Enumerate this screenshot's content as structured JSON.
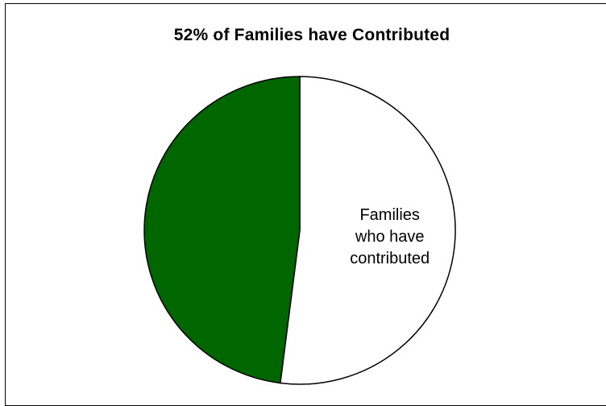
{
  "chart_data": {
    "type": "pie",
    "title": "52% of  Families have Contributed",
    "slices": [
      {
        "label": "Families who have contributed",
        "label_lines": [
          "Families",
          "who have",
          "contributed"
        ],
        "value": 52,
        "color": "#ffffff",
        "labeled": true
      },
      {
        "label": "",
        "value": 48,
        "color": "#006600",
        "labeled": false
      }
    ],
    "legend": "none",
    "start_angle_deg": 0,
    "direction": "clockwise"
  }
}
